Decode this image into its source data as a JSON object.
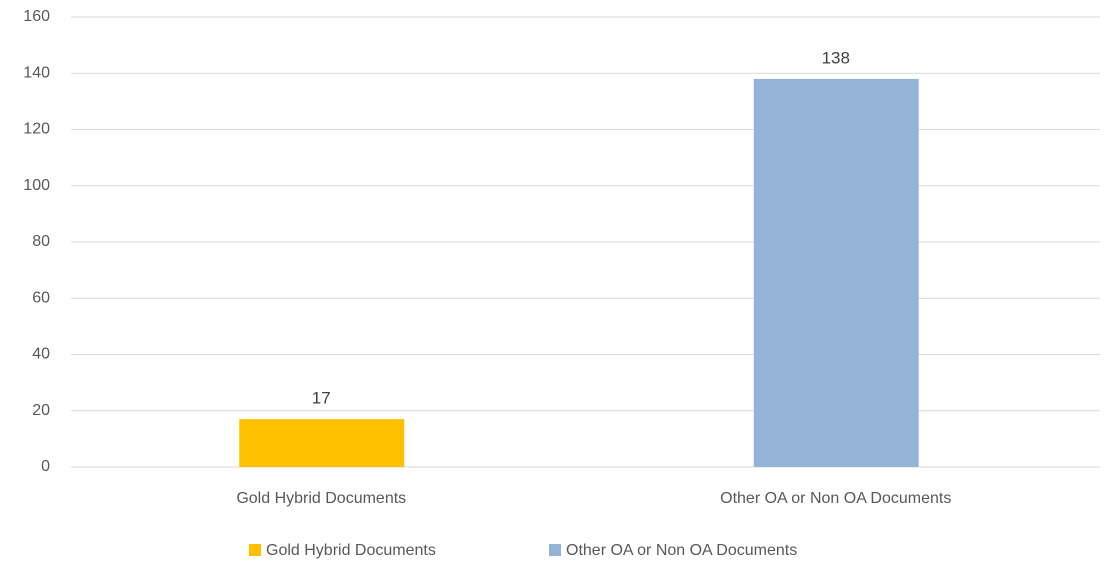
{
  "chart_data": {
    "type": "bar",
    "categories": [
      "Gold Hybrid Documents",
      "Other OA or Non OA Documents"
    ],
    "values": [
      17,
      138
    ],
    "colors": [
      "#ffc000",
      "#95b3d7"
    ],
    "ylim": [
      0,
      160
    ],
    "yticks": [
      0,
      20,
      40,
      60,
      80,
      100,
      120,
      140,
      160
    ],
    "grid": true,
    "legend": "bottom"
  }
}
